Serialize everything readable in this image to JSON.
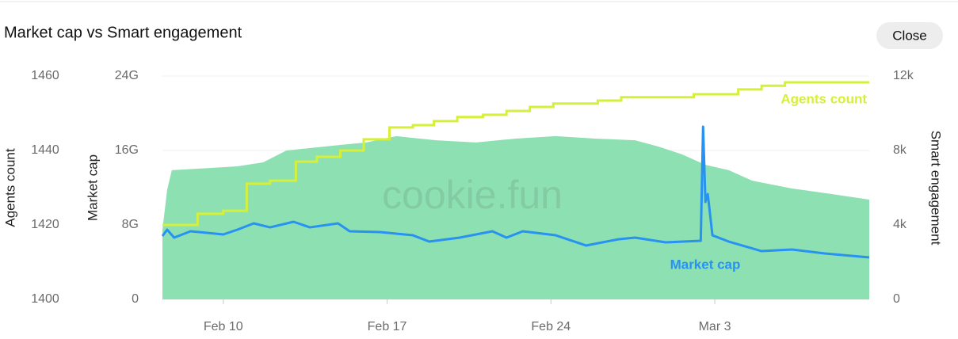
{
  "title": "Market cap vs Smart engagement",
  "close_button": "Close",
  "watermark": "cookie.fun",
  "chart_data": {
    "type": "line",
    "xlim": [
      38.4,
      68.6
    ],
    "xticks": [
      {
        "value": 41,
        "label": "Feb 10"
      },
      {
        "value": 48,
        "label": "Feb 17"
      },
      {
        "value": 55,
        "label": "Feb 24"
      },
      {
        "value": 62,
        "label": "Mar 3"
      }
    ],
    "ylim": [
      1400,
      1460
    ],
    "yticks": [
      1400,
      1420,
      1440,
      1460
    ],
    "ylabel": "Agents count",
    "y1lim": [
      0,
      24
    ],
    "y1ticks": [
      {
        "value": 0,
        "label": "0"
      },
      {
        "value": 8,
        "label": "8G"
      },
      {
        "value": 16,
        "label": "16G"
      },
      {
        "value": 24,
        "label": "24G"
      }
    ],
    "y1label": "Market cap",
    "y2lim": [
      0,
      12
    ],
    "y2ticks": [
      {
        "value": 0,
        "label": "0"
      },
      {
        "value": 4,
        "label": "4k"
      },
      {
        "value": 8,
        "label": "8k"
      },
      {
        "value": 12,
        "label": "12k"
      }
    ],
    "y2label": "Smart engagement",
    "grid": true,
    "series": [
      {
        "name": "Smart engagement",
        "kind": "area",
        "axis": "y2",
        "color": "#8de0b2",
        "x": [
          38.4,
          38.6,
          38.8,
          41.6,
          42.7,
          43.7,
          46.0,
          47.1,
          48.4,
          50.1,
          51.8,
          53.5,
          55.2,
          56.9,
          58.6,
          59.6,
          60.6,
          61.6,
          62.6,
          63.6,
          65.3,
          67.0,
          68.6
        ],
        "values": [
          3.74,
          5.87,
          6.94,
          7.15,
          7.36,
          8.0,
          8.3,
          8.43,
          8.77,
          8.55,
          8.43,
          8.64,
          8.77,
          8.64,
          8.55,
          8.21,
          7.79,
          7.23,
          6.94,
          6.38,
          5.96,
          5.66,
          5.36
        ]
      },
      {
        "name": "Agents count",
        "kind": "step",
        "axis": "y",
        "color": "#d6f03a",
        "x": [
          38.4,
          39.9,
          41.0,
          42.0,
          43.0,
          44.1,
          45.0,
          46.0,
          47.0,
          48.1,
          49.1,
          50.0,
          51.0,
          52.1,
          53.1,
          54.1,
          55.1,
          57.0,
          58.0,
          61.1,
          63.0,
          64.0,
          65.0,
          68.6
        ],
        "values": [
          1420.0,
          1423.0,
          1423.8,
          1431.1,
          1431.9,
          1437.0,
          1438.3,
          1440.0,
          1443.0,
          1446.2,
          1446.8,
          1447.9,
          1449.0,
          1449.6,
          1450.6,
          1451.7,
          1452.6,
          1453.4,
          1454.3,
          1455.1,
          1456.4,
          1457.4,
          1458.3,
          1458.3
        ]
      },
      {
        "name": "Market cap",
        "kind": "line",
        "axis": "y1",
        "color": "#2892f2",
        "x": [
          38.4,
          38.6,
          38.9,
          39.6,
          41.0,
          41.6,
          42.3,
          43.0,
          44.0,
          44.7,
          45.9,
          46.4,
          47.7,
          49.1,
          49.8,
          51.1,
          52.5,
          53.1,
          53.8,
          55.2,
          56.5,
          57.9,
          58.6,
          59.9,
          61.4,
          61.5,
          61.6,
          61.7,
          61.9,
          62.6,
          64.0,
          65.3,
          66.7,
          68.6
        ],
        "values": [
          6.81,
          7.49,
          6.64,
          7.32,
          6.98,
          7.49,
          8.17,
          7.74,
          8.34,
          7.74,
          8.17,
          7.32,
          7.23,
          6.89,
          6.21,
          6.64,
          7.32,
          6.64,
          7.32,
          6.89,
          5.79,
          6.47,
          6.64,
          6.13,
          6.3,
          18.55,
          10.47,
          11.32,
          6.89,
          6.21,
          5.19,
          5.36,
          4.94,
          4.51
        ]
      }
    ]
  }
}
